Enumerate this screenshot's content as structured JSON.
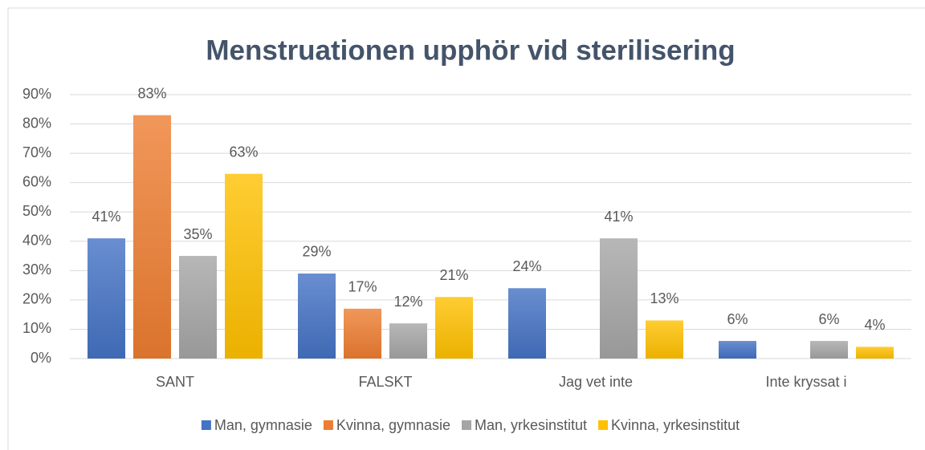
{
  "chart_data": {
    "type": "bar",
    "title": "Menstruationen upphör vid sterilisering",
    "categories": [
      "SANT",
      "FALSKT",
      "Jag vet inte",
      "Inte kryssat i"
    ],
    "series": [
      {
        "name": "Man, gymnasie",
        "color": "#4472c4",
        "values": [
          41,
          29,
          24,
          6
        ],
        "value_labels": [
          "41%",
          "29%",
          "24%",
          "6%"
        ]
      },
      {
        "name": "Kvinna, gymnasie",
        "color": "#ed7d31",
        "values": [
          83,
          17,
          null,
          null
        ],
        "value_labels": [
          "83%",
          "17%",
          null,
          null
        ]
      },
      {
        "name": "Man, yrkesinstitut",
        "color": "#a5a5a5",
        "values": [
          35,
          12,
          41,
          6
        ],
        "value_labels": [
          "35%",
          "12%",
          "41%",
          "6%"
        ]
      },
      {
        "name": "Kvinna, yrkesinstitut",
        "color": "#ffc000",
        "values": [
          63,
          21,
          13,
          4
        ],
        "value_labels": [
          "63%",
          "21%",
          "13%",
          "4%"
        ]
      }
    ],
    "ylim": [
      0,
      90
    ],
    "yticks": [
      {
        "value": 0,
        "label": "0%"
      },
      {
        "value": 10,
        "label": "10%"
      },
      {
        "value": 20,
        "label": "20%"
      },
      {
        "value": 30,
        "label": "30%"
      },
      {
        "value": 40,
        "label": "40%"
      },
      {
        "value": 50,
        "label": "50%"
      },
      {
        "value": 60,
        "label": "60%"
      },
      {
        "value": 70,
        "label": "70%"
      },
      {
        "value": 80,
        "label": "80%"
      },
      {
        "value": 90,
        "label": "90%"
      }
    ],
    "grid": true,
    "legend": "bottom"
  }
}
